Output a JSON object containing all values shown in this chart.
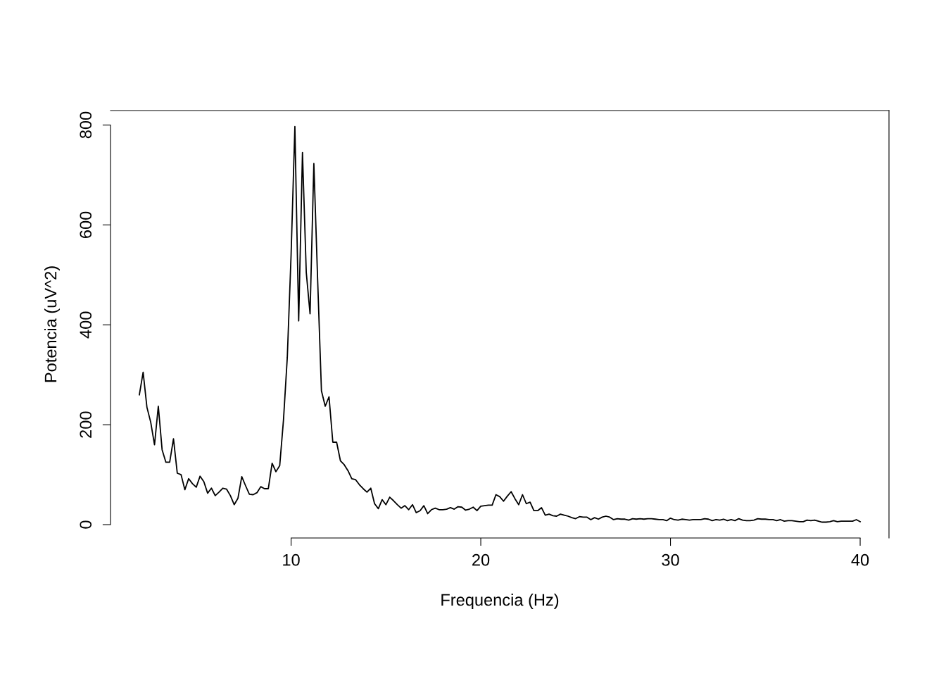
{
  "chart_data": {
    "type": "line",
    "xlabel": "Frequencia (Hz)",
    "ylabel": "Potencia (uV^2)",
    "x": [
      2.0,
      2.2,
      2.4,
      2.6,
      2.8,
      3.0,
      3.2,
      3.4,
      3.6,
      3.8,
      4.0,
      4.2,
      4.4,
      4.6,
      4.8,
      5.0,
      5.2,
      5.4,
      5.6,
      5.8,
      6.0,
      6.2,
      6.4,
      6.6,
      6.8,
      7.0,
      7.2,
      7.4,
      7.6,
      7.8,
      8.0,
      8.2,
      8.4,
      8.6,
      8.8,
      9.0,
      9.2,
      9.4,
      9.6,
      9.8,
      10.0,
      10.2,
      10.4,
      10.6,
      10.8,
      11.0,
      11.2,
      11.4,
      11.6,
      11.8,
      12.0,
      12.2,
      12.4,
      12.6,
      12.8,
      13.0,
      13.2,
      13.4,
      13.6,
      13.8,
      14.0,
      14.2,
      14.4,
      14.6,
      14.8,
      15.0,
      15.2,
      15.4,
      15.6,
      15.8,
      16.0,
      16.2,
      16.4,
      16.6,
      16.8,
      17.0,
      17.2,
      17.4,
      17.6,
      17.8,
      18.0,
      18.2,
      18.4,
      18.6,
      18.8,
      19.0,
      19.2,
      19.4,
      19.6,
      19.8,
      20.0,
      20.2,
      20.4,
      20.6,
      20.8,
      21.0,
      21.2,
      21.4,
      21.6,
      21.8,
      22.0,
      22.2,
      22.4,
      22.6,
      22.8,
      23.0,
      23.2,
      23.4,
      23.6,
      23.8,
      24.0,
      24.2,
      24.4,
      24.6,
      24.8,
      25.0,
      25.2,
      25.4,
      25.6,
      25.8,
      26.0,
      26.2,
      26.4,
      26.6,
      26.8,
      27.0,
      27.2,
      27.4,
      27.6,
      27.8,
      28.0,
      28.2,
      28.4,
      28.6,
      28.8,
      29.0,
      29.2,
      29.4,
      29.6,
      29.8,
      30.0,
      30.2,
      30.4,
      30.6,
      30.8,
      31.0,
      31.2,
      31.4,
      31.6,
      31.8,
      32.0,
      32.2,
      32.4,
      32.6,
      32.8,
      33.0,
      33.2,
      33.4,
      33.6,
      33.8,
      34.0,
      34.2,
      34.4,
      34.6,
      34.8,
      35.0,
      35.2,
      35.4,
      35.6,
      35.8,
      36.0,
      36.2,
      36.4,
      36.6,
      36.8,
      37.0,
      37.2,
      37.4,
      37.6,
      37.8,
      38.0,
      38.2,
      38.4,
      38.6,
      38.8,
      39.0,
      39.2,
      39.4,
      39.6,
      39.8,
      40.0
    ],
    "series": [
      {
        "color": "#000000",
        "values": [
          260,
          305,
          235,
          205,
          160,
          237,
          150,
          125,
          125,
          172,
          103,
          100,
          70,
          92,
          82,
          75,
          97,
          86,
          63,
          73,
          58,
          65,
          73,
          71,
          58,
          40,
          53,
          96,
          78,
          61,
          60,
          64,
          76,
          72,
          72,
          123,
          106,
          118,
          210,
          335,
          540,
          797,
          408,
          745,
          505,
          422,
          723,
          490,
          268,
          237,
          256,
          165,
          165,
          128,
          120,
          108,
          92,
          90,
          80,
          72,
          65,
          73,
          42,
          32,
          50,
          40,
          55,
          48,
          40,
          33,
          38,
          30,
          40,
          24,
          28,
          38,
          22,
          30,
          33,
          30,
          30,
          31,
          34,
          31,
          36,
          35,
          29,
          31,
          35,
          28,
          37,
          38,
          39,
          39,
          60,
          56,
          47,
          57,
          66,
          52,
          40,
          60,
          42,
          45,
          28,
          28,
          34,
          19,
          21,
          18,
          17,
          21,
          19,
          17,
          14,
          12,
          16,
          15,
          15,
          10,
          14,
          11,
          15,
          17,
          15,
          10,
          12,
          11,
          11,
          9,
          12,
          11,
          12,
          11,
          12,
          12,
          11,
          10,
          10,
          8,
          13,
          10,
          9,
          11,
          10,
          9,
          10,
          10,
          10,
          12,
          11,
          8,
          10,
          9,
          11,
          8,
          10,
          8,
          12,
          9,
          8,
          8,
          9,
          12,
          11,
          11,
          10,
          10,
          8,
          10,
          7,
          8,
          8,
          7,
          6,
          6,
          9,
          8,
          9,
          7,
          5,
          5,
          6,
          8,
          6,
          7,
          7,
          7,
          7,
          10,
          6
        ]
      }
    ],
    "xlim": [
      0.48,
      41.52
    ],
    "ylim": [
      -26.7,
      829
    ],
    "xticks": [
      10,
      20,
      30,
      40
    ],
    "yticks": [
      0,
      200,
      400,
      600,
      800
    ],
    "grid": false,
    "legend": false,
    "marker": "none",
    "line_style": "solid"
  }
}
